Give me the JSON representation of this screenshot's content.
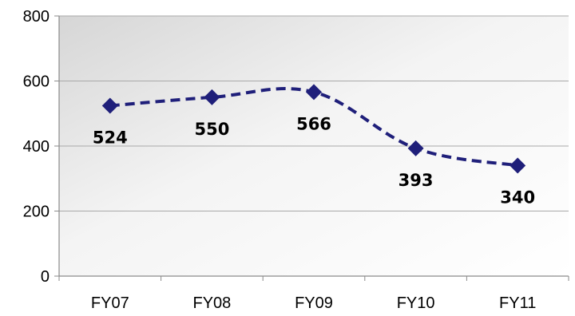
{
  "chart_data": {
    "type": "line",
    "categories": [
      "FY07",
      "FY08",
      "FY09",
      "FY10",
      "FY11"
    ],
    "series": [
      {
        "values": [
          524,
          550,
          566,
          393,
          340
        ],
        "color": "#1f1f7a",
        "line_style": "dashed",
        "marker": "diamond",
        "smooth": true
      }
    ],
    "data_labels": [
      "524",
      "550",
      "566",
      "393",
      "340"
    ],
    "y_ticks": [
      0,
      200,
      400,
      600,
      800
    ],
    "ylim": [
      0,
      800
    ],
    "grid": true,
    "plot_background": "gradient white to light gray",
    "title": "",
    "xlabel": "",
    "ylabel": ""
  }
}
